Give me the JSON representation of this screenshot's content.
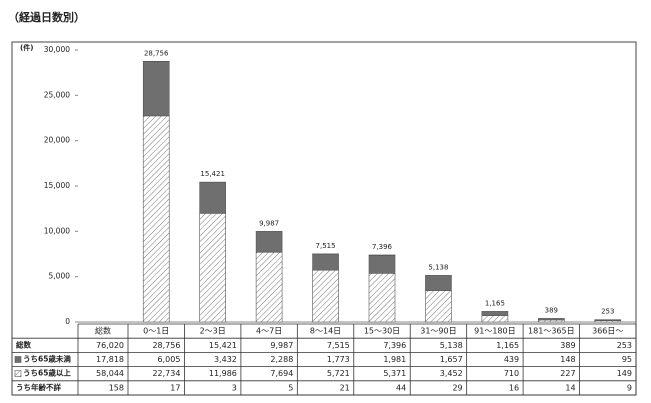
{
  "chart_data": {
    "type": "bar",
    "stacked": true,
    "title": "（経過日数別）",
    "y_unit": "(件)",
    "categories": [
      "0～1日",
      "2～3日",
      "4～7日",
      "8～14日",
      "15～30日",
      "31～90日",
      "91～180日",
      "181～365日",
      "366日～"
    ],
    "ylim": [
      0,
      30000
    ],
    "yticks": [
      0,
      {
        "value": 5000,
        "label": "5,000"
      },
      {
        "value": 10000,
        "label": "10,000"
      },
      {
        "value": 15000,
        "label": "15,000"
      },
      {
        "value": 20000,
        "label": "20,000"
      },
      {
        "value": 25000,
        "label": "25,000"
      },
      {
        "value": 30000,
        "label": "30,000"
      }
    ],
    "total_header": "総数",
    "totals": {
      "name": "総数",
      "all": {
        "value": 76020,
        "label": "76,020"
      },
      "values": [
        28756,
        15421,
        9987,
        7515,
        7396,
        5138,
        1165,
        389,
        253
      ],
      "value_labels": [
        "28,756",
        "15,421",
        "9,987",
        "7,515",
        "7,396",
        "5,138",
        "1,165",
        "389",
        "253"
      ]
    },
    "series": [
      {
        "name": "うち65歳以上",
        "color": "#8a8a8a",
        "pattern": "hatch",
        "all": {
          "value": 58044,
          "label": "58,044"
        },
        "values": [
          22734,
          11986,
          7694,
          5721,
          5371,
          3452,
          710,
          227,
          149
        ],
        "value_labels": [
          "22,734",
          "11,986",
          "7,694",
          "5,721",
          "5,371",
          "3,452",
          "710",
          "227",
          "149"
        ]
      },
      {
        "name": "うち65歳未満",
        "color": "#6f6f6f",
        "all": {
          "value": 17818,
          "label": "17,818"
        },
        "values": [
          6005,
          3432,
          2288,
          1773,
          1981,
          1657,
          439,
          148,
          95
        ],
        "value_labels": [
          "6,005",
          "3,432",
          "2,288",
          "1,773",
          "1,981",
          "1,657",
          "439",
          "148",
          "95"
        ]
      },
      {
        "name": "うち年齢不詳",
        "color": "#ffffff",
        "all": {
          "value": 158,
          "label": "158"
        },
        "values": [
          17,
          3,
          5,
          21,
          44,
          29,
          16,
          14,
          9
        ],
        "value_labels": [
          "17",
          "3",
          "5",
          "21",
          "44",
          "29",
          "16",
          "14",
          "9"
        ]
      }
    ],
    "row_order": [
      1,
      0,
      2
    ]
  }
}
